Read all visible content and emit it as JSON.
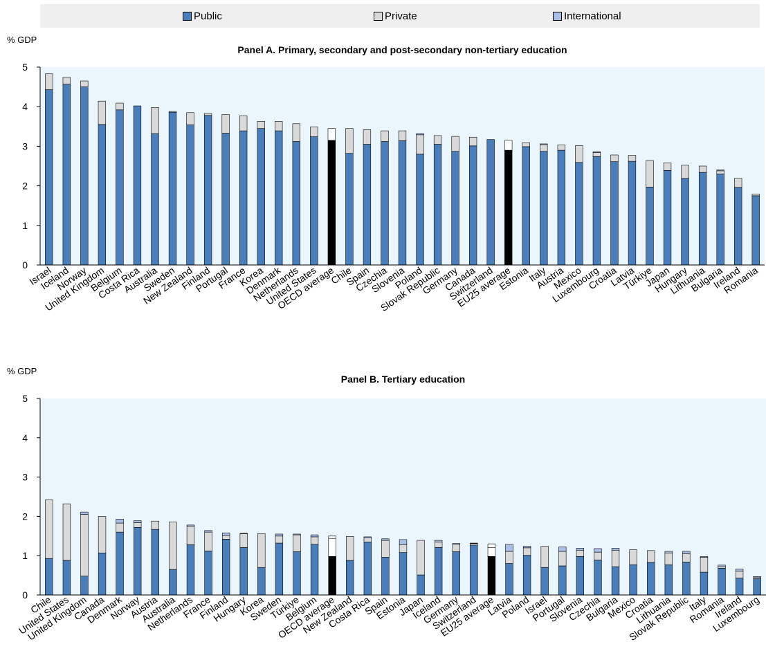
{
  "legend": {
    "public": "Public",
    "private": "Private",
    "international": "International"
  },
  "colors": {
    "public": "#4a7ebb",
    "private": "#d9d9d9",
    "international": "#a9bfe6",
    "average_public": "#000000",
    "average_private": "#ffffff",
    "plot_bg": "#eaf6fc"
  },
  "chart_data": [
    {
      "type": "bar",
      "stacked": true,
      "title": "Panel A. Primary, secondary and post-secondary non-tertiary education",
      "ylabel": "% GDP",
      "ylim": [
        0,
        5
      ],
      "yticks": [
        0,
        1,
        2,
        3,
        4,
        5
      ],
      "categories": [
        "Israel",
        "Iceland",
        "Norway",
        "United Kingdom",
        "Belgium",
        "Costa Rica",
        "Australia",
        "Sweden",
        "New Zealand",
        "Finland",
        "Portugal",
        "France",
        "Korea",
        "Denmark",
        "Netherlands",
        "United States",
        "OECD average",
        "Chile",
        "Spain",
        "Czechia",
        "Slovenia",
        "Poland",
        "Slovak Republic",
        "Germany",
        "Canada",
        "Switzerland",
        "EU25 average",
        "Estonia",
        "Italy",
        "Austria",
        "Mexico",
        "Luxembourg",
        "Croatia",
        "Latvia",
        "Türkiye",
        "Japan",
        "Hungary",
        "Lithuania",
        "Bulgaria",
        "Ireland",
        "Romania"
      ],
      "highlight": [
        "OECD average",
        "EU25 average"
      ],
      "series": [
        {
          "name": "Public",
          "values": [
            4.43,
            4.57,
            4.5,
            3.55,
            3.92,
            4.02,
            3.32,
            3.86,
            3.54,
            3.78,
            3.33,
            3.39,
            3.45,
            3.39,
            3.12,
            3.24,
            3.15,
            2.82,
            3.05,
            3.12,
            3.14,
            2.8,
            3.05,
            2.87,
            3.01,
            3.17,
            2.9,
            2.99,
            2.87,
            2.9,
            2.59,
            2.74,
            2.61,
            2.62,
            1.97,
            2.39,
            2.19,
            2.34,
            2.3,
            1.96,
            1.75
          ]
        },
        {
          "name": "Private",
          "values": [
            0.4,
            0.17,
            0.15,
            0.59,
            0.17,
            0.0,
            0.66,
            0.02,
            0.31,
            0.05,
            0.47,
            0.38,
            0.18,
            0.24,
            0.45,
            0.25,
            0.3,
            0.63,
            0.37,
            0.27,
            0.25,
            0.49,
            0.22,
            0.38,
            0.22,
            0.0,
            0.25,
            0.1,
            0.17,
            0.13,
            0.43,
            0.1,
            0.17,
            0.15,
            0.67,
            0.19,
            0.33,
            0.16,
            0.08,
            0.23,
            0.04
          ]
        },
        {
          "name": "International",
          "values": [
            0,
            0,
            0,
            0,
            0,
            0,
            0,
            0,
            0,
            0,
            0,
            0,
            0,
            0,
            0,
            0,
            0,
            0,
            0,
            0,
            0,
            0.03,
            0,
            0,
            0,
            0,
            0,
            0,
            0.02,
            0,
            0,
            0.02,
            0,
            0,
            0,
            0,
            0,
            0,
            0.02,
            0,
            0
          ]
        }
      ]
    },
    {
      "type": "bar",
      "stacked": true,
      "title": "Panel B. Tertiary education",
      "ylabel": "% GDP",
      "ylim": [
        0,
        5
      ],
      "yticks": [
        0,
        1,
        2,
        3,
        4,
        5
      ],
      "categories": [
        "Chile",
        "United States",
        "United Kingdom",
        "Canada",
        "Denmark",
        "Norway",
        "Austria",
        "Australia",
        "Netherlands",
        "France",
        "Finland",
        "Hungary",
        "Korea",
        "Sweden",
        "Türkiye",
        "Belgium",
        "OECD average",
        "New Zealand",
        "Costa Rica",
        "Spain",
        "Estonia",
        "Japan",
        "Iceland",
        "Germany",
        "Switzerland",
        "EU25 average",
        "Latvia",
        "Poland",
        "Israel",
        "Portugal",
        "Slovenia",
        "Czechia",
        "Bulgaria",
        "Mexico",
        "Croatia",
        "Lithuania",
        "Slovak Republic",
        "Italy",
        "Romania",
        "Ireland",
        "Luxembourg"
      ],
      "highlight": [
        "OECD average",
        "EU25 average"
      ],
      "series": [
        {
          "name": "Public",
          "values": [
            0.93,
            0.88,
            0.48,
            1.07,
            1.6,
            1.72,
            1.67,
            0.65,
            1.28,
            1.12,
            1.42,
            1.21,
            0.7,
            1.32,
            1.1,
            1.29,
            0.98,
            0.88,
            1.35,
            0.96,
            1.08,
            0.51,
            1.21,
            1.1,
            1.27,
            0.98,
            0.8,
            1.01,
            0.7,
            0.74,
            0.98,
            0.89,
            0.72,
            0.77,
            0.83,
            0.77,
            0.84,
            0.58,
            0.68,
            0.43,
            0.41
          ]
        },
        {
          "name": "Private",
          "values": [
            1.49,
            1.44,
            1.57,
            0.93,
            0.23,
            0.12,
            0.21,
            1.21,
            0.47,
            0.48,
            0.09,
            0.35,
            0.86,
            0.18,
            0.43,
            0.19,
            0.46,
            0.61,
            0.1,
            0.43,
            0.2,
            0.88,
            0.14,
            0.19,
            0.04,
            0.23,
            0.31,
            0.19,
            0.54,
            0.37,
            0.16,
            0.2,
            0.42,
            0.38,
            0.3,
            0.3,
            0.21,
            0.38,
            0.04,
            0.18,
            0.03
          ]
        },
        {
          "name": "International",
          "values": [
            0,
            0,
            0.06,
            0,
            0.1,
            0.05,
            0,
            0,
            0.03,
            0.04,
            0.07,
            0.01,
            0,
            0.05,
            0.02,
            0.05,
            0.06,
            0,
            0.03,
            0.04,
            0.13,
            0,
            0.04,
            0.02,
            0.01,
            0.09,
            0.18,
            0.04,
            0,
            0.11,
            0.05,
            0.09,
            0.05,
            0,
            0,
            0.04,
            0.06,
            0.02,
            0.04,
            0.05,
            0.03
          ]
        }
      ]
    }
  ]
}
